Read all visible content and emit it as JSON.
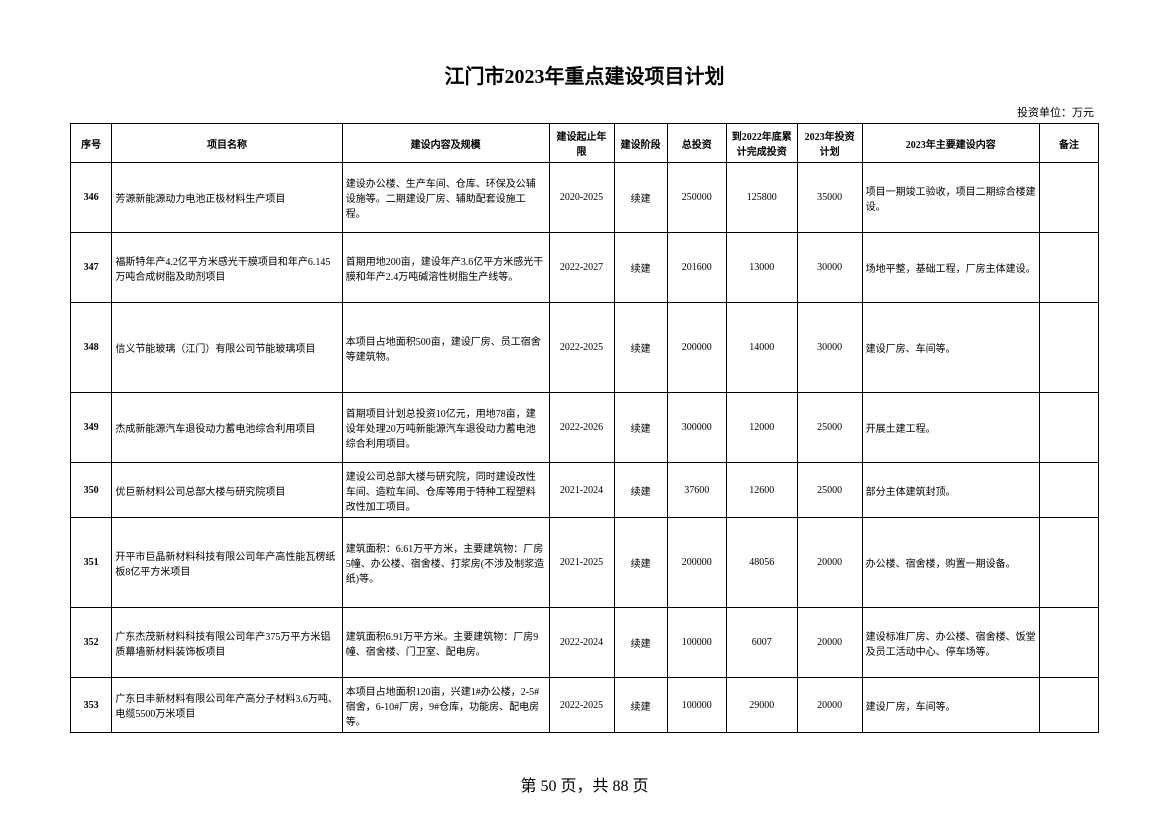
{
  "title": "江门市2023年重点建设项目计划",
  "unit_label": "投资单位：万元",
  "columns": {
    "seq": "序号",
    "name": "项目名称",
    "content": "建设内容及规模",
    "period": "建设起止年限",
    "stage": "建设阶段",
    "invest": "总投资",
    "done": "到2022年底累计完成投资",
    "plan": "2023年投资计划",
    "main": "2023年主要建设内容",
    "remark": "备注"
  },
  "rows": [
    {
      "seq": "346",
      "name": "芳源新能源动力电池正极材料生产项目",
      "content": "建设办公楼、生产车间、仓库、环保及公辅设施等。二期建设厂房、辅助配套设施工程。",
      "period": "2020-2025",
      "stage": "续建",
      "invest": "250000",
      "done": "125800",
      "plan": "35000",
      "main": "项目一期竣工验收，项目二期综合楼建设。",
      "remark": ""
    },
    {
      "seq": "347",
      "name": "福斯特年产4.2亿平方米感光干膜项目和年产6.145万吨合成树脂及助剂项目",
      "content": "首期用地200亩，建设年产3.6亿平方米感光干膜和年产2.4万吨碱溶性树脂生产线等。",
      "period": "2022-2027",
      "stage": "续建",
      "invest": "201600",
      "done": "13000",
      "plan": "30000",
      "main": "场地平整，基础工程，厂房主体建设。",
      "remark": ""
    },
    {
      "seq": "348",
      "name": "信义节能玻璃（江门）有限公司节能玻璃项目",
      "content": "本项目占地面积500亩，建设厂房、员工宿舍等建筑物。",
      "period": "2022-2025",
      "stage": "续建",
      "invest": "200000",
      "done": "14000",
      "plan": "30000",
      "main": "建设厂房、车间等。",
      "remark": ""
    },
    {
      "seq": "349",
      "name": "杰成新能源汽车退役动力蓄电池综合利用项目",
      "content": "首期项目计划总投资10亿元，用地78亩，建设年处理20万吨新能源汽车退役动力蓄电池综合利用项目。",
      "period": "2022-2026",
      "stage": "续建",
      "invest": "300000",
      "done": "12000",
      "plan": "25000",
      "main": "开展土建工程。",
      "remark": ""
    },
    {
      "seq": "350",
      "name": "优巨新材料公司总部大楼与研究院项目",
      "content": "建设公司总部大楼与研究院，同时建设改性车间、造粒车间、仓库等用于特种工程塑料改性加工项目。",
      "period": "2021-2024",
      "stage": "续建",
      "invest": "37600",
      "done": "12600",
      "plan": "25000",
      "main": "部分主体建筑封顶。",
      "remark": ""
    },
    {
      "seq": "351",
      "name": "开平市巨晶新材料科技有限公司年产高性能瓦楞纸板8亿平方米项目",
      "content": "建筑面积：6.61万平方米，主要建筑物：厂房5幢、办公楼、宿舍楼、打浆房(不涉及制浆造纸)等。",
      "period": "2021-2025",
      "stage": "续建",
      "invest": "200000",
      "done": "48056",
      "plan": "20000",
      "main": "办公楼、宿舍楼，购置一期设备。",
      "remark": ""
    },
    {
      "seq": "352",
      "name": "广东杰茂新材料科技有限公司年产375万平方米铝质幕墙新材料装饰板项目",
      "content": "建筑面积6.91万平方米。主要建筑物：厂房9幢、宿舍楼、门卫室、配电房。",
      "period": "2022-2024",
      "stage": "续建",
      "invest": "100000",
      "done": "6007",
      "plan": "20000",
      "main": "建设标准厂房、办公楼、宿舍楼、饭堂及员工活动中心、停车场等。",
      "remark": ""
    },
    {
      "seq": "353",
      "name": "广东日丰新材料有限公司年产高分子材料3.6万吨、电缆5500万米项目",
      "content": "本项目占地面积120亩，兴建1#办公楼，2-5#宿舍，6-10#厂房，9#仓库，功能房、配电房等。",
      "period": "2022-2025",
      "stage": "续建",
      "invest": "100000",
      "done": "29000",
      "plan": "20000",
      "main": "建设厂房，车间等。",
      "remark": ""
    }
  ],
  "footer": {
    "page_current": "50",
    "page_total": "88",
    "prefix": "第 ",
    "mid": " 页，共 ",
    "suffix": " 页"
  },
  "colors": {
    "border": "#000000",
    "background": "#ffffff",
    "text": "#000000"
  }
}
